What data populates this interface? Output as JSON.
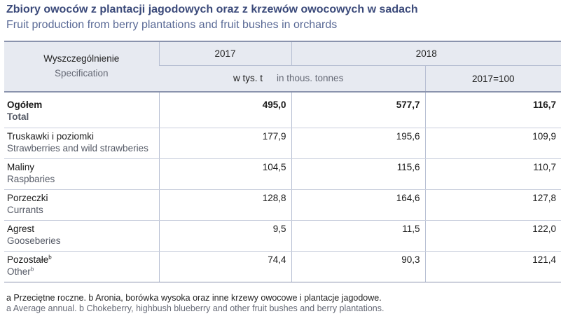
{
  "title": {
    "pl": "Zbiory owoców z plantacji jagodowych oraz z krzewów owocowych w sadach",
    "en": "Fruit production from berry plantations and fruit bushes in orchards"
  },
  "header": {
    "spec_pl": "Wyszczególnienie",
    "spec_en": "Specification",
    "year1": "2017",
    "year2": "2018",
    "unit_pl": "w tys. t",
    "unit_en": "in thous. tonnes",
    "index": "2017=100"
  },
  "rows": [
    {
      "pl": "Ogółem",
      "en": "Total",
      "sup": "",
      "v2017": "495,0",
      "v2018": "577,7",
      "idx": "116,7"
    },
    {
      "pl": "Truskawki i poziomki",
      "en": "Strawberries and wild strawberies",
      "sup": "",
      "v2017": "177,9",
      "v2018": "195,6",
      "idx": "109,9"
    },
    {
      "pl": "Maliny",
      "en": "Raspbaries",
      "sup": "",
      "v2017": "104,5",
      "v2018": "115,6",
      "idx": "110,7"
    },
    {
      "pl": "Porzeczki",
      "en": "Currants",
      "sup": "",
      "v2017": "128,8",
      "v2018": "164,6",
      "idx": "127,8"
    },
    {
      "pl": "Agrest",
      "en": "Gooseberies",
      "sup": "",
      "v2017": "9,5",
      "v2018": "11,5",
      "idx": "122,0"
    },
    {
      "pl": "Pozostałe",
      "en": "Other",
      "sup": "b",
      "v2017": "74,4",
      "v2018": "90,3",
      "idx": "121,4"
    }
  ],
  "footnotes": {
    "pl": "a Przeciętne roczne. b Aronia, borówka wysoka oraz inne krzewy owocowe i plantacje jagodowe.",
    "en": "a Average annual. b Chokeberry, highbush blueberry and other fruit bushes and berry plantations."
  }
}
